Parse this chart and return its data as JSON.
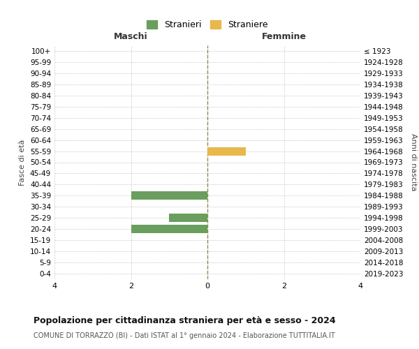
{
  "age_groups": [
    "100+",
    "95-99",
    "90-94",
    "85-89",
    "80-84",
    "75-79",
    "70-74",
    "65-69",
    "60-64",
    "55-59",
    "50-54",
    "45-49",
    "40-44",
    "35-39",
    "30-34",
    "25-29",
    "20-24",
    "15-19",
    "10-14",
    "5-9",
    "0-4"
  ],
  "birth_years": [
    "≤ 1923",
    "1924-1928",
    "1929-1933",
    "1934-1938",
    "1939-1943",
    "1944-1948",
    "1949-1953",
    "1954-1958",
    "1959-1963",
    "1964-1968",
    "1969-1973",
    "1974-1978",
    "1979-1983",
    "1984-1988",
    "1989-1993",
    "1994-1998",
    "1999-2003",
    "2004-2008",
    "2009-2013",
    "2014-2018",
    "2019-2023"
  ],
  "males": [
    0,
    0,
    0,
    0,
    0,
    0,
    0,
    0,
    0,
    0,
    0,
    0,
    0,
    2,
    0,
    1,
    2,
    0,
    0,
    0,
    0
  ],
  "females": [
    0,
    0,
    0,
    0,
    0,
    0,
    0,
    0,
    0,
    1,
    0,
    0,
    0,
    0,
    0,
    0,
    0,
    0,
    0,
    0,
    0
  ],
  "male_color": "#6a9e5e",
  "female_color": "#e8b84b",
  "center_line_color": "#8b8b4a",
  "grid_color": "#cccccc",
  "title": "Popolazione per cittadinanza straniera per età e sesso - 2024",
  "subtitle": "COMUNE DI TORRAZZO (BI) - Dati ISTAT al 1° gennaio 2024 - Elaborazione TUTTITALIA.IT",
  "xlabel_left": "Maschi",
  "xlabel_right": "Femmine",
  "ylabel_left": "Fasce di età",
  "ylabel_right": "Anni di nascita",
  "legend_male": "Stranieri",
  "legend_female": "Straniere",
  "xlim": [
    -4,
    4
  ],
  "xticks": [
    -4,
    -2,
    0,
    2,
    4
  ],
  "xtick_labels": [
    "4",
    "2",
    "0",
    "2",
    "4"
  ],
  "bar_height": 0.75,
  "background_color": "#ffffff"
}
